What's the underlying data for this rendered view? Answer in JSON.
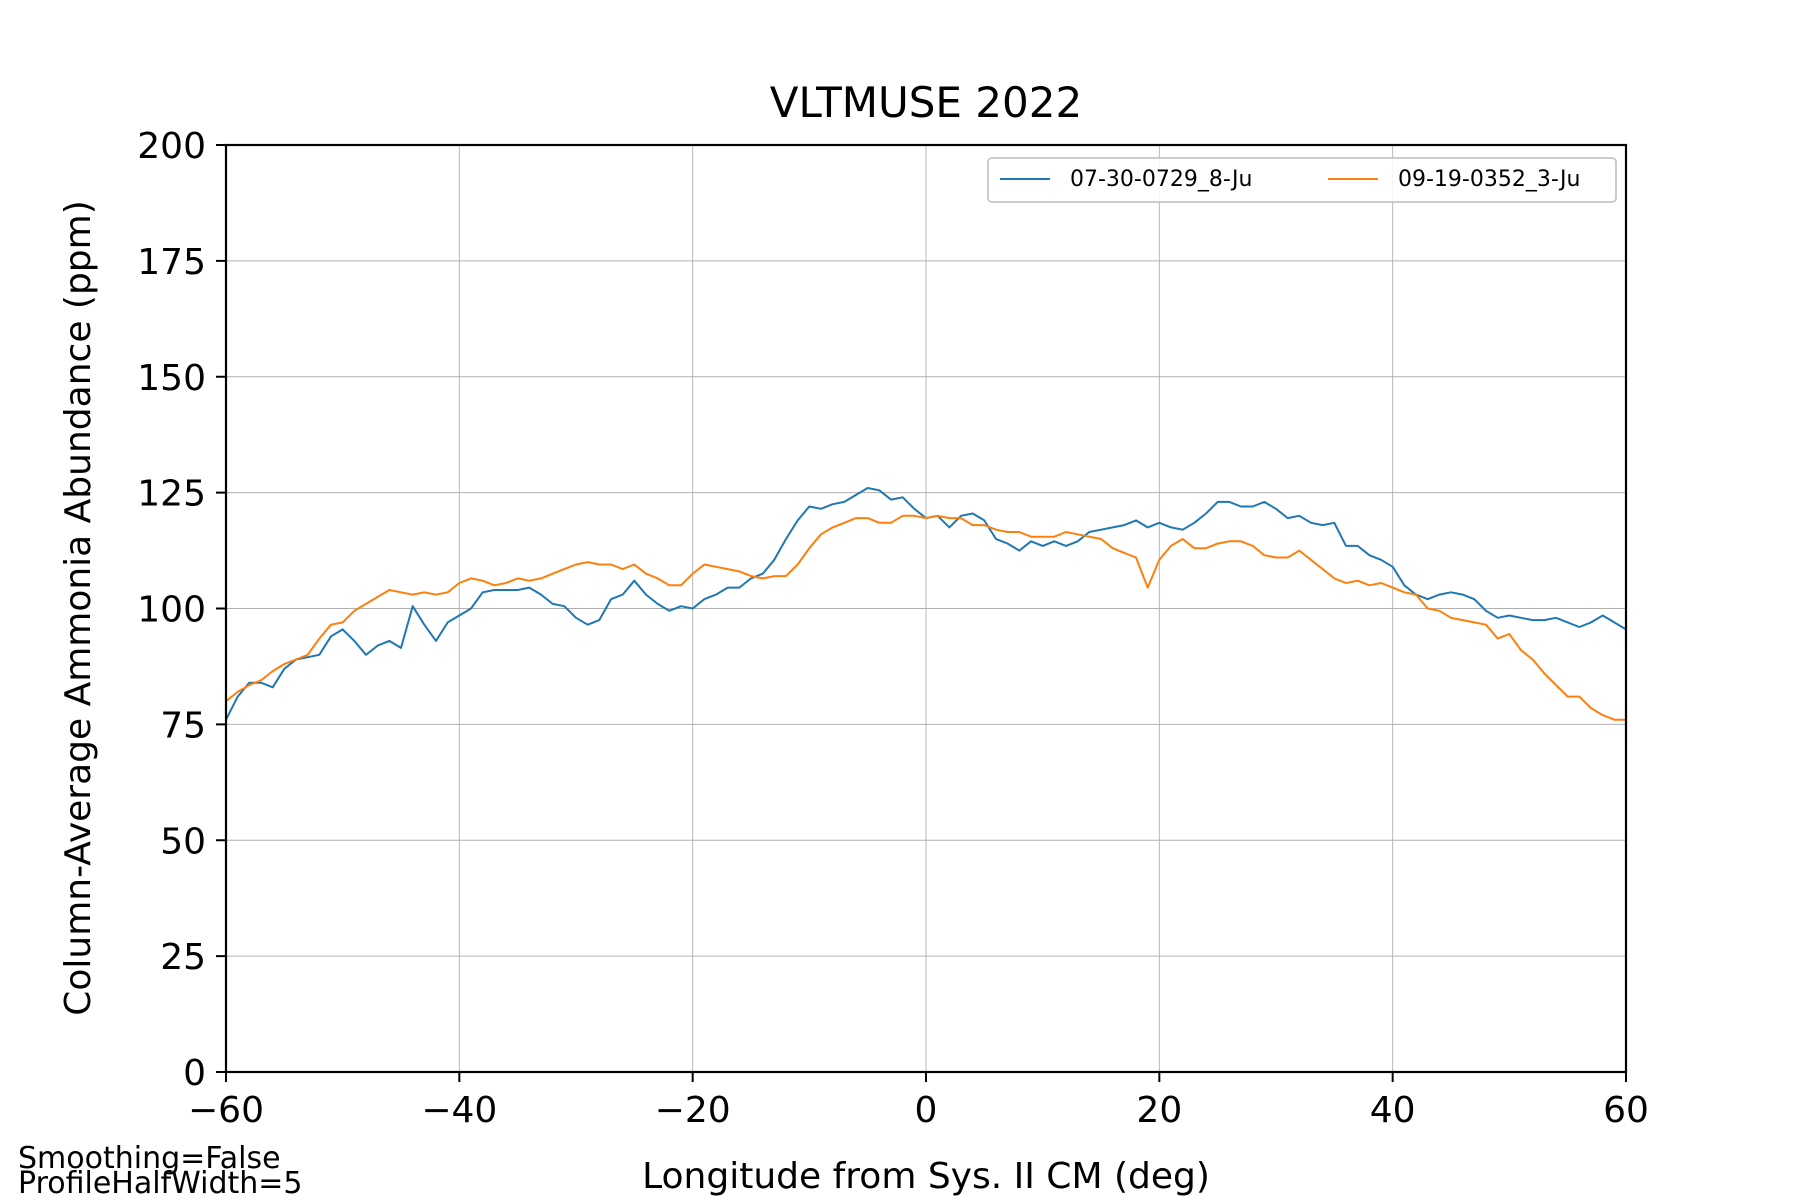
{
  "chart_data": {
    "type": "line",
    "title": "VLTMUSE 2022",
    "xlabel": "Longitude from Sys. II CM (deg)",
    "ylabel": "Column-Average Ammonia Abundance (ppm)",
    "xlim": [
      -60,
      60
    ],
    "ylim": [
      0,
      200
    ],
    "x_ticks": [
      "−60",
      "−40",
      "−20",
      "0",
      "20",
      "40",
      "60"
    ],
    "y_ticks": [
      "0",
      "25",
      "50",
      "75",
      "100",
      "125",
      "150",
      "175",
      "200"
    ],
    "grid": true,
    "legend_position": "top-right",
    "x": [
      -60,
      -59,
      -58,
      -57,
      -56,
      -55,
      -54,
      -53,
      -52,
      -51,
      -50,
      -49,
      -48,
      -47,
      -46,
      -45,
      -44,
      -43,
      -42,
      -41,
      -40,
      -39,
      -38,
      -37,
      -36,
      -35,
      -34,
      -33,
      -32,
      -31,
      -30,
      -29,
      -28,
      -27,
      -26,
      -25,
      -24,
      -23,
      -22,
      -21,
      -20,
      -19,
      -18,
      -17,
      -16,
      -15,
      -14,
      -13,
      -12,
      -11,
      -10,
      -9,
      -8,
      -7,
      -6,
      -5,
      -4,
      -3,
      -2,
      -1,
      0,
      1,
      2,
      3,
      4,
      5,
      6,
      7,
      8,
      9,
      10,
      11,
      12,
      13,
      14,
      15,
      16,
      17,
      18,
      19,
      20,
      21,
      22,
      23,
      24,
      25,
      26,
      27,
      28,
      29,
      30,
      31,
      32,
      33,
      34,
      35,
      36,
      37,
      38,
      39,
      40,
      41,
      42,
      43,
      44,
      45,
      46,
      47,
      48,
      49,
      50,
      51,
      52,
      53,
      54,
      55,
      56,
      57,
      58,
      59,
      60
    ],
    "series": [
      {
        "name": "07-30-0729_8-Ju",
        "color": "#1f77b4",
        "values": [
          76,
          81,
          84,
          84,
          83,
          87,
          89,
          89.5,
          90,
          94,
          95.5,
          93,
          90,
          92,
          93,
          91.5,
          100.5,
          96.5,
          93,
          97,
          98.5,
          100,
          103.5,
          104,
          104,
          104,
          104.5,
          103,
          101,
          100.5,
          98,
          96.5,
          97.5,
          102,
          103,
          106,
          103,
          101,
          99.5,
          100.5,
          100,
          102,
          103,
          104.5,
          104.5,
          106.5,
          107.5,
          110.5,
          115,
          119,
          122,
          121.5,
          122.5,
          123,
          124.5,
          126,
          125.5,
          123.5,
          124,
          121.5,
          119.5,
          120,
          117.5,
          120,
          120.5,
          119,
          115,
          114,
          112.5,
          114.5,
          113.5,
          114.5,
          113.5,
          114.5,
          116.5,
          117,
          117.5,
          118,
          119,
          117.5,
          118.5,
          117.5,
          117,
          118.5,
          120.5,
          123,
          123,
          122,
          122,
          123,
          121.5,
          119.5,
          120,
          118.5,
          118,
          118.5,
          113.5,
          113.5,
          111.5,
          110.5,
          109,
          105,
          103,
          102,
          103,
          103.5,
          103,
          102,
          99.5,
          98,
          98.5,
          98,
          97.5,
          97.5,
          98,
          97,
          96,
          97,
          98.5,
          97,
          95.5
        ]
      },
      {
        "name": "09-19-0352_3-Ju",
        "color": "#ff7f0e",
        "values": [
          80,
          82,
          83.5,
          84.5,
          86.5,
          88,
          89,
          90,
          93.5,
          96.5,
          97,
          99.5,
          101,
          102.5,
          104,
          103.5,
          103,
          103.5,
          103,
          103.5,
          105.5,
          106.5,
          106,
          105,
          105.5,
          106.5,
          106,
          106.5,
          107.5,
          108.5,
          109.5,
          110,
          109.5,
          109.5,
          108.5,
          109.5,
          107.5,
          106.5,
          105,
          105,
          107.5,
          109.5,
          109,
          108.5,
          108,
          107,
          106.5,
          107,
          107,
          109.5,
          113,
          116,
          117.5,
          118.5,
          119.5,
          119.5,
          118.5,
          118.5,
          120,
          120,
          119.5,
          120,
          119.5,
          119.5,
          118,
          118,
          117,
          116.5,
          116.5,
          115.5,
          115.5,
          115.5,
          116.5,
          116,
          115.5,
          115,
          113,
          112,
          111,
          104.5,
          110.5,
          113.5,
          115,
          113,
          113,
          114,
          114.5,
          114.5,
          113.5,
          111.5,
          111,
          111,
          112.5,
          110.5,
          108.5,
          106.5,
          105.5,
          106,
          105,
          105.5,
          104.5,
          103.5,
          103,
          100,
          99.5,
          98,
          97.5,
          97,
          96.5,
          93.5,
          94.5,
          91,
          89,
          86,
          83.5,
          81,
          81,
          78.5,
          77,
          76,
          76
        ]
      }
    ]
  },
  "annotations": {
    "smoothing": "Smoothing=False",
    "profile_half_width": "ProfileHalfWidth=5"
  }
}
